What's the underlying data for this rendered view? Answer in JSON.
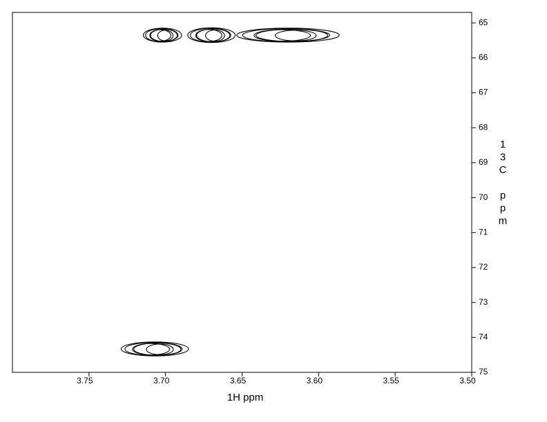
{
  "chart_data": {
    "type": "contour",
    "x_label": "1H ppm",
    "y_label": "13C ppm",
    "xlim": [
      3.8,
      3.5
    ],
    "ylim": [
      64.7,
      75
    ],
    "xticks": [
      {
        "value": 3.75,
        "label": "3.75"
      },
      {
        "value": 3.7,
        "label": "3.70"
      },
      {
        "value": 3.65,
        "label": "3.65"
      },
      {
        "value": 3.6,
        "label": "3.60"
      },
      {
        "value": 3.55,
        "label": "3.55"
      },
      {
        "value": 3.5,
        "label": "3.50"
      }
    ],
    "yticks": [
      65,
      66,
      67,
      68,
      69,
      70,
      71,
      72,
      73,
      74,
      75
    ],
    "color": "#000000",
    "series": [
      {
        "x": [
          3.702,
          3.67,
          3.62,
          3.707
        ],
        "y": [
          65.35,
          65.35,
          65.35,
          74.33
        ],
        "x_width": [
          0.025,
          0.031,
          0.067,
          0.044
        ],
        "y_width": [
          0.4,
          0.42,
          0.4,
          0.4
        ]
      }
    ]
  }
}
